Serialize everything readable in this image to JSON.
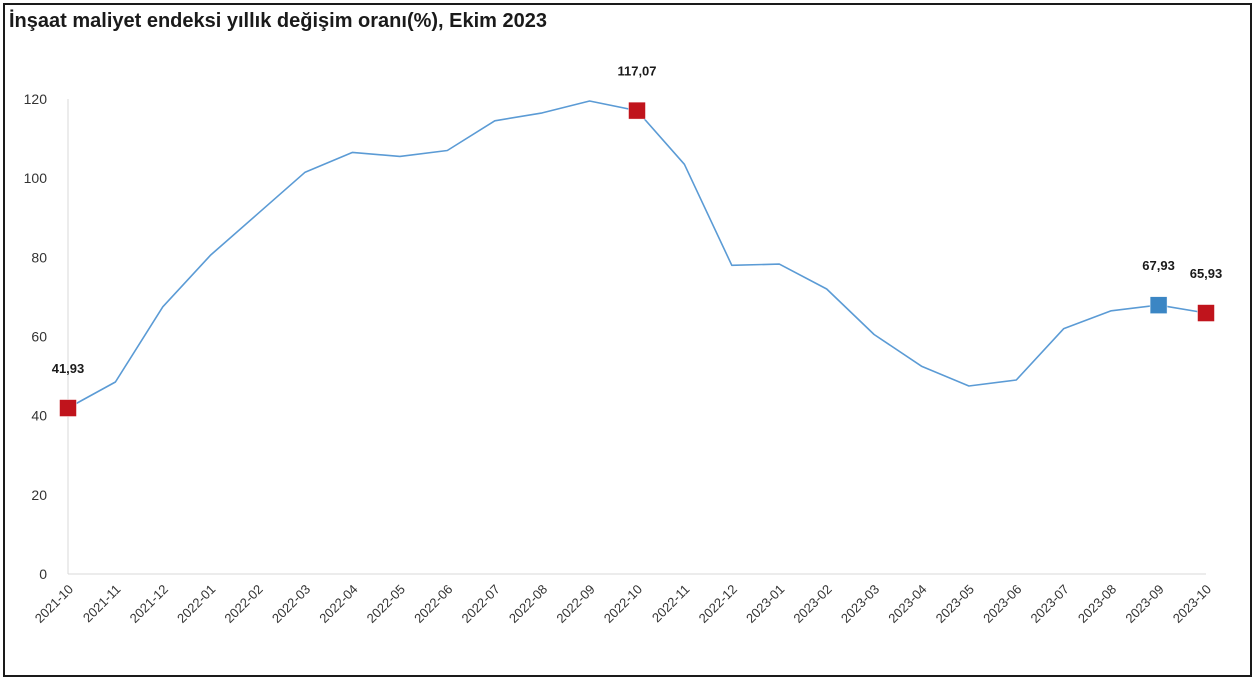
{
  "chart_data": {
    "type": "line",
    "title": "İnşaat maliyet endeksi yıllık değişim oranı(%), Ekim 2023",
    "xlabel": "",
    "ylabel": "",
    "ylim": [
      0,
      120
    ],
    "yticks": [
      0,
      20,
      40,
      60,
      80,
      100,
      120
    ],
    "grid": false,
    "categories": [
      "2021-10",
      "2021-11",
      "2021-12",
      "2022-01",
      "2022-02",
      "2022-03",
      "2022-04",
      "2022-05",
      "2022-06",
      "2022-07",
      "2022-08",
      "2022-09",
      "2022-10",
      "2022-11",
      "2022-12",
      "2023-01",
      "2023-02",
      "2023-03",
      "2023-04",
      "2023-05",
      "2023-06",
      "2023-07",
      "2023-08",
      "2023-09",
      "2023-10"
    ],
    "series": [
      {
        "values": [
          41.93,
          48.5,
          67.5,
          80.5,
          91.0,
          101.5,
          106.5,
          105.5,
          107.0,
          114.5,
          116.5,
          119.5,
          117.07,
          103.5,
          78.0,
          78.3,
          72.0,
          60.5,
          52.5,
          47.5,
          49.0,
          62.0,
          66.5,
          67.93,
          65.93
        ],
        "color": "#5b9bd5"
      }
    ],
    "highlights": [
      {
        "category": "2021-10",
        "value": 41.93,
        "label": "41,93",
        "color": "#c0141c"
      },
      {
        "category": "2022-10",
        "value": 117.07,
        "label": "117,07",
        "color": "#c0141c"
      },
      {
        "category": "2023-09",
        "value": 67.93,
        "label": "67,93",
        "color": "#3b86c4"
      },
      {
        "category": "2023-10",
        "value": 65.93,
        "label": "65,93",
        "color": "#c0141c"
      }
    ]
  }
}
